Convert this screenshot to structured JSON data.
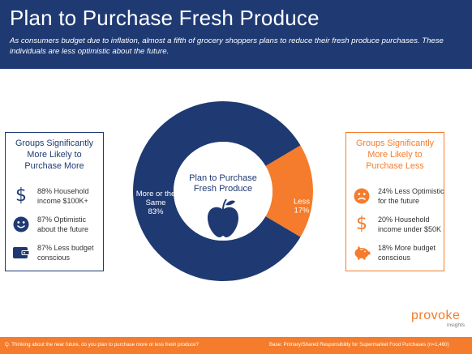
{
  "header": {
    "title": "Plan to Purchase Fresh Produce",
    "subtitle": "As consumers budget due to inflation, almost a fifth of grocery shoppers plans to reduce their fresh produce purchases. These individuals are less optimistic about the future."
  },
  "chart_data": {
    "type": "pie",
    "donut": true,
    "center_label_lines": [
      "Plan to Purchase",
      "Fresh Produce"
    ],
    "center_icon": "apple-icon",
    "slices": [
      {
        "label_lines": [
          "More or the",
          "Same"
        ],
        "value": 83,
        "value_label": "83%",
        "color": "#1f3a73"
      },
      {
        "label_lines": [
          "Less"
        ],
        "value": 17,
        "value_label": "17%",
        "color": "#f47c2c"
      }
    ]
  },
  "left_panel": {
    "title_lines": [
      "Groups Significantly",
      "More Likely to",
      "Purchase More"
    ],
    "items": [
      {
        "icon": "dollar-icon",
        "glyph": "$",
        "lines": [
          "88% Household",
          "income $100K+"
        ]
      },
      {
        "icon": "smile-icon",
        "lines": [
          "87% Optimistic",
          "about the future"
        ]
      },
      {
        "icon": "wallet-icon",
        "lines": [
          "87% Less budget",
          "conscious"
        ]
      }
    ]
  },
  "right_panel": {
    "title_lines": [
      "Groups Significantly",
      "More Likely to",
      "Purchase Less"
    ],
    "items": [
      {
        "icon": "sad-face-icon",
        "lines": [
          "24% Less Optimistic",
          "for the future"
        ]
      },
      {
        "icon": "dollar-icon",
        "glyph": "$",
        "lines": [
          "20% Household",
          "income under $50K"
        ]
      },
      {
        "icon": "piggy-bank-icon",
        "lines": [
          "18% More budget",
          "conscious"
        ]
      }
    ]
  },
  "logo": {
    "word": "provoke",
    "sub": "insights"
  },
  "footer": {
    "question": "Q. Thinking about the near future, do you plan to purchase more or less fresh produce?",
    "base": "Base: Primary/Shared Responsibility for Supermarket Food Purchases (n=1,460)"
  },
  "colors": {
    "navy": "#1f3a73",
    "orange": "#f47c2c"
  }
}
